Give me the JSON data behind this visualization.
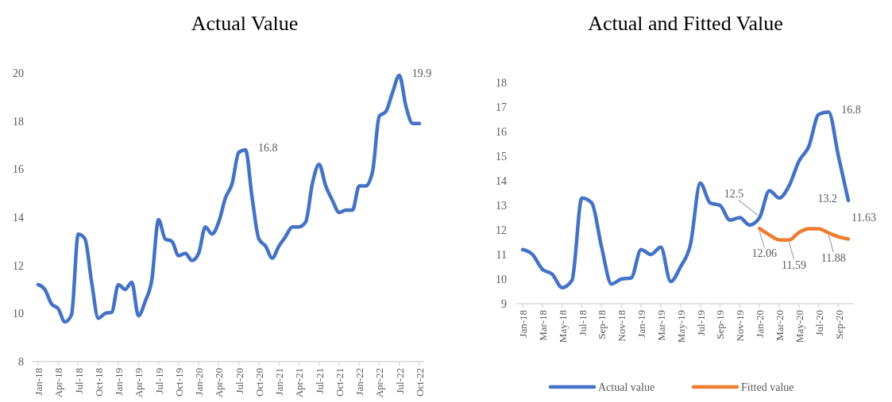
{
  "chart_data": [
    {
      "type": "line",
      "title": "Actual Value",
      "categories": [
        "Jan-18",
        null,
        null,
        "Apr-18",
        null,
        null,
        "Jul-18",
        null,
        null,
        "Oct-18",
        null,
        null,
        "Jan-19",
        null,
        null,
        "Apr-19",
        null,
        null,
        "Jul-19",
        null,
        null,
        "Oct-19",
        null,
        null,
        "Jan-20",
        null,
        null,
        "Apr-20",
        null,
        null,
        "Jul-20",
        null,
        null,
        "Oct-20",
        null,
        null,
        "Jan-21",
        null,
        null,
        "Apr-21",
        null,
        null,
        "Jul-21",
        null,
        null,
        "Oct-21",
        null,
        null,
        "Jan-22",
        null,
        null,
        "Apr-22",
        null,
        null,
        "Jul-22",
        null,
        null,
        "Oct-22"
      ],
      "series": [
        {
          "color": "#4472c4",
          "values": [
            11.2,
            11.0,
            10.4,
            10.2,
            9.65,
            9.95,
            13.3,
            13.1,
            11.3,
            9.8,
            10.0,
            10.05,
            11.2,
            11.0,
            11.3,
            9.9,
            10.5,
            11.4,
            13.9,
            13.1,
            13.0,
            12.4,
            12.5,
            12.2,
            12.5,
            13.6,
            13.3,
            13.8,
            14.8,
            15.4,
            16.7,
            16.8,
            14.8,
            13.1,
            12.8,
            12.3,
            12.8,
            13.2,
            13.6,
            13.6,
            13.8,
            15.4,
            16.2,
            15.3,
            14.7,
            14.2,
            14.3,
            14.3,
            15.3,
            15.3,
            15.9,
            18.2,
            18.4,
            19.2,
            19.9,
            18.6,
            17.9,
            17.9
          ],
          "value_labels": [
            null,
            null,
            null,
            null,
            null,
            null,
            null,
            null,
            null,
            null,
            null,
            null,
            null,
            null,
            null,
            null,
            null,
            null,
            null,
            null,
            null,
            null,
            null,
            null,
            null,
            null,
            null,
            null,
            null,
            null,
            null,
            "16.8",
            null,
            null,
            null,
            null,
            null,
            null,
            null,
            null,
            null,
            null,
            null,
            null,
            null,
            null,
            null,
            null,
            null,
            null,
            null,
            null,
            null,
            null,
            "19.9",
            null,
            null,
            null
          ]
        }
      ],
      "ylim": [
        8,
        20
      ],
      "yticks": [
        8,
        10,
        12,
        14,
        16,
        18,
        20
      ],
      "grid": false,
      "legend": false
    },
    {
      "type": "line",
      "title": "Actual and Fitted Value",
      "categories": [
        "Jan-18",
        null,
        "Mar-18",
        null,
        "May-18",
        null,
        "Jul-18",
        null,
        "Sep-18",
        null,
        "Nov-18",
        null,
        "Jan-19",
        null,
        "Mar-19",
        null,
        "May-19",
        null,
        "Jul-19",
        null,
        "Sep-19",
        null,
        "Nov-19",
        null,
        "Jan-20",
        null,
        "Mar-20",
        null,
        "May-20",
        null,
        "Jul-20",
        null,
        "Sep-20",
        null
      ],
      "series": [
        {
          "name": "Actual value",
          "color": "#4472c4",
          "values": [
            11.2,
            11.0,
            10.4,
            10.2,
            9.65,
            9.95,
            13.3,
            13.1,
            11.3,
            9.8,
            10.0,
            10.05,
            11.2,
            11.0,
            11.3,
            9.9,
            10.5,
            11.4,
            13.9,
            13.1,
            13.0,
            12.4,
            12.5,
            12.2,
            12.5,
            13.6,
            13.3,
            13.8,
            14.8,
            15.4,
            16.7,
            16.8,
            15.0,
            13.2
          ],
          "value_labels": [
            null,
            null,
            null,
            null,
            null,
            null,
            null,
            null,
            null,
            null,
            null,
            null,
            null,
            null,
            null,
            null,
            null,
            null,
            null,
            null,
            null,
            null,
            null,
            null,
            "12.5",
            null,
            null,
            null,
            null,
            null,
            null,
            "16.8",
            null,
            "13.2"
          ]
        },
        {
          "name": "Fitted value",
          "color": "#ed7d31",
          "values": [
            null,
            null,
            null,
            null,
            null,
            null,
            null,
            null,
            null,
            null,
            null,
            null,
            null,
            null,
            null,
            null,
            null,
            null,
            null,
            null,
            null,
            null,
            null,
            null,
            12.06,
            11.8,
            11.6,
            11.59,
            11.9,
            12.05,
            12.05,
            11.88,
            11.72,
            11.63
          ],
          "value_labels": [
            null,
            null,
            null,
            null,
            null,
            null,
            null,
            null,
            null,
            null,
            null,
            null,
            null,
            null,
            null,
            null,
            null,
            null,
            null,
            null,
            null,
            null,
            null,
            null,
            "12.06",
            null,
            null,
            "11.59",
            null,
            null,
            null,
            "11.88",
            null,
            "11.63"
          ]
        }
      ],
      "ylim": [
        9,
        18
      ],
      "yticks": [
        9,
        10,
        11,
        12,
        13,
        14,
        15,
        16,
        17,
        18
      ],
      "grid": false,
      "legend": "bottom"
    }
  ]
}
